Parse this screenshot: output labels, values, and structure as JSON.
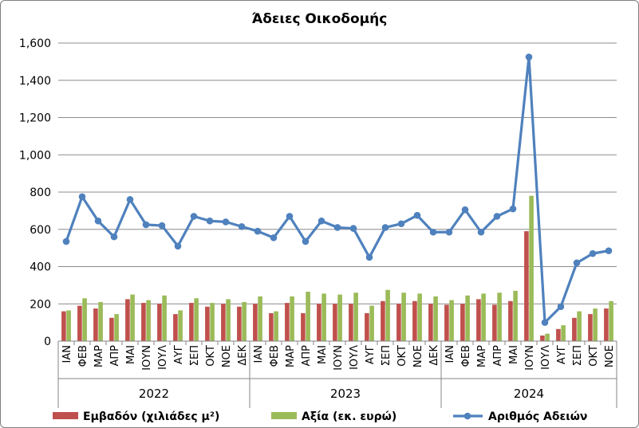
{
  "chart_data": {
    "type": "bar",
    "title": "Άδειες Οικοδομής",
    "xlabel": "",
    "ylabel": "",
    "ylim": [
      0,
      1600
    ],
    "yticks": [
      "0",
      "200",
      "400",
      "600",
      "800",
      "1,000",
      "1,200",
      "1,400",
      "1,600"
    ],
    "grid": true,
    "legend": "bottom",
    "groups": [
      {
        "label": "2022",
        "months": [
          "ΙΑΝ",
          "ΦΕΒ",
          "ΜΑΡ",
          "ΑΠΡ",
          "ΜΑΙ",
          "ΙΟΥΝ",
          "ΙΟΥΛ",
          "ΑΥΓ",
          "ΣΕΠ",
          "ΟΚΤ",
          "ΝΟΕ",
          "ΔΕΚ"
        ]
      },
      {
        "label": "2023",
        "months": [
          "ΙΑΝ",
          "ΦΕΒ",
          "ΜΑΡ",
          "ΑΠΡ",
          "ΜΑΙ",
          "ΙΟΥΝ",
          "ΙΟΥΛ",
          "ΑΥΓ",
          "ΣΕΠ",
          "ΟΚΤ",
          "ΝΟΕ",
          "ΔΕΚ"
        ]
      },
      {
        "label": "2024",
        "months": [
          "ΙΑΝ",
          "ΦΕΒ",
          "ΜΑΡ",
          "ΑΠΡ",
          "ΜΑΙ",
          "ΙΟΥΝ",
          "ΙΟΥΛ",
          "ΑΥΓ",
          "ΣΕΠ",
          "ΟΚΤ",
          "ΝΟΕ"
        ]
      }
    ],
    "series": [
      {
        "name": "Εμβαδόν (χιλιάδες μ²)",
        "type": "bar",
        "color": "#c0504d",
        "values": [
          160,
          190,
          175,
          125,
          225,
          205,
          200,
          145,
          205,
          185,
          200,
          185,
          200,
          150,
          205,
          150,
          200,
          200,
          200,
          150,
          215,
          200,
          215,
          200,
          195,
          200,
          225,
          195,
          215,
          590,
          30,
          65,
          125,
          145,
          175
        ]
      },
      {
        "name": "Αξία (εκ. ευρώ)",
        "type": "bar",
        "color": "#9bbb59",
        "values": [
          165,
          230,
          210,
          145,
          250,
          220,
          245,
          165,
          230,
          205,
          225,
          210,
          240,
          160,
          240,
          265,
          255,
          250,
          260,
          190,
          275,
          260,
          255,
          240,
          220,
          245,
          255,
          260,
          270,
          780,
          40,
          85,
          160,
          175,
          215
        ]
      },
      {
        "name": "Αριθμός Αδειών",
        "type": "line",
        "color": "#4f81bd",
        "values": [
          535,
          775,
          645,
          560,
          760,
          625,
          620,
          510,
          670,
          645,
          640,
          615,
          590,
          555,
          670,
          535,
          645,
          610,
          605,
          450,
          610,
          630,
          675,
          585,
          585,
          705,
          585,
          670,
          710,
          1525,
          100,
          185,
          420,
          470,
          485
        ]
      }
    ]
  }
}
